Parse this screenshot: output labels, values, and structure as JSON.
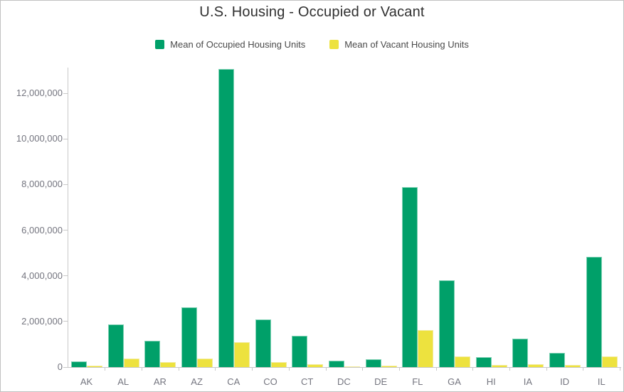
{
  "title": "U.S. Housing - Occupied or Vacant",
  "colors": {
    "occupied": "#00a069",
    "occupied_edge": "#7fd1b4",
    "vacant": "#ede23e",
    "vacant_edge": "#f2ea9a",
    "axis_line": "#c9c9c9",
    "axis_text": "#74757f",
    "title_text": "#2f2f2f",
    "legend_text": "#4a4a4a",
    "frame_border": "#c2c2c2"
  },
  "chart_data": {
    "type": "bar",
    "title": "U.S. Housing - Occupied or Vacant",
    "xlabel": "",
    "ylabel": "",
    "grid": false,
    "legend_position": "top",
    "ylim": [
      0,
      13120000
    ],
    "yticks": [
      0,
      2000000,
      4000000,
      6000000,
      8000000,
      10000000,
      12000000
    ],
    "ytick_labels": [
      "0",
      "2,000,000",
      "4,000,000",
      "6,000,000",
      "8,000,000",
      "10,000,000",
      "12,000,000"
    ],
    "categories": [
      "AK",
      "AL",
      "AR",
      "AZ",
      "CA",
      "CO",
      "CT",
      "DC",
      "DE",
      "FL",
      "GA",
      "HI",
      "IA",
      "ID",
      "IL"
    ],
    "series": [
      {
        "name": "Mean of Occupied Housing Units",
        "color": "#00a069",
        "values": [
          250000,
          1870000,
          1150000,
          2620000,
          13050000,
          2090000,
          1370000,
          280000,
          345000,
          7900000,
          3800000,
          440000,
          1250000,
          625000,
          4830000
        ]
      },
      {
        "name": "Mean of Vacant Housing Units",
        "color": "#ede23e",
        "values": [
          60000,
          375000,
          220000,
          375000,
          1090000,
          220000,
          125000,
          30000,
          65000,
          1620000,
          470000,
          80000,
          125000,
          90000,
          470000
        ]
      }
    ]
  }
}
